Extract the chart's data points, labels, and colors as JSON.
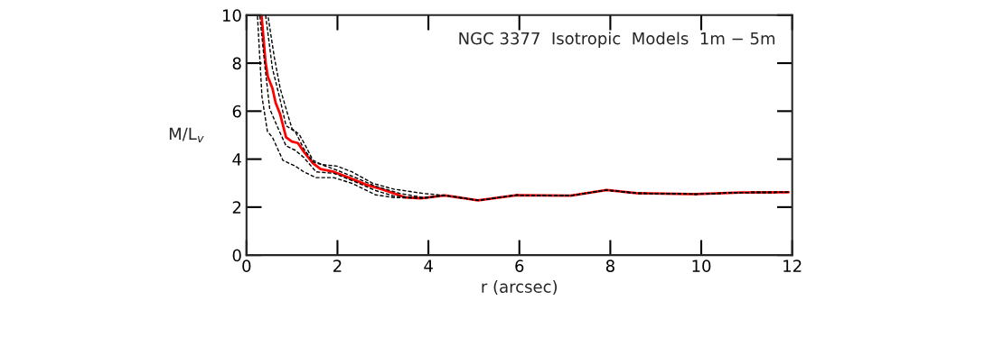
{
  "chart_data": {
    "type": "line",
    "xlabel": "r (arcsec)",
    "ylabel": "M/L$_{v}$",
    "annotations": [
      "NGC 3377  Isotropic  Models  1m − 5m"
    ],
    "xlim": [
      0,
      12
    ],
    "ylim": [
      0,
      10
    ],
    "xticks": [
      0,
      2,
      4,
      6,
      8,
      10,
      12
    ],
    "yticks": [
      0,
      2,
      4,
      6,
      8,
      10
    ],
    "grid": false,
    "legend": false,
    "series": [
      {
        "color": "#000000",
        "line_style": "dashed",
        "x": [
          0.47,
          0.61,
          0.74,
          0.87,
          1.0,
          1.16,
          1.3,
          1.46,
          1.66,
          1.99,
          2.32,
          2.78,
          3.24,
          3.89,
          4.36,
          5.09,
          5.94,
          7.13,
          7.92,
          8.58,
          9.89,
          10.88,
          11.92
        ],
        "values": [
          10,
          8.26,
          6.95,
          6.1,
          5.27,
          5.03,
          4.55,
          3.95,
          3.77,
          3.71,
          3.47,
          2.99,
          2.75,
          2.57,
          2.49,
          2.28,
          2.5,
          2.48,
          2.71,
          2.58,
          2.54,
          2.61,
          2.62
        ]
      },
      {
        "color": "#000000",
        "line_style": "dashed",
        "x": [
          0.42,
          0.57,
          0.74,
          0.87,
          1.07,
          1.26,
          1.46,
          1.92,
          2.32,
          2.84,
          3.37,
          3.89,
          4.36,
          5.09,
          5.94,
          7.13,
          7.92,
          8.58,
          9.89,
          10.88,
          11.92
        ],
        "values": [
          10,
          7.78,
          6.47,
          5.39,
          5.15,
          4.43,
          3.89,
          3.59,
          3.29,
          2.87,
          2.57,
          2.4,
          2.49,
          2.28,
          2.5,
          2.48,
          2.71,
          2.58,
          2.54,
          2.61,
          2.62
        ]
      },
      {
        "color": "#000000",
        "line_style": "dashed",
        "x": [
          0.29,
          0.41,
          0.51,
          0.67,
          0.87,
          1.07,
          1.26,
          1.53,
          1.92,
          2.32,
          2.84,
          3.24,
          3.89,
          4.36,
          5.09,
          5.94,
          7.13,
          7.92,
          8.58,
          9.89,
          10.88,
          11.92
        ],
        "values": [
          10,
          7.78,
          6.1,
          5.39,
          4.55,
          4.37,
          4.07,
          3.47,
          3.41,
          3.11,
          2.69,
          2.46,
          2.37,
          2.49,
          2.28,
          2.5,
          2.48,
          2.71,
          2.58,
          2.54,
          2.61,
          2.62
        ]
      },
      {
        "color": "#000000",
        "line_style": "dashed",
        "x": [
          0.24,
          0.34,
          0.46,
          0.57,
          0.8,
          1.07,
          1.26,
          1.53,
          1.92,
          2.32,
          2.84,
          3.24,
          3.89,
          4.36,
          5.09,
          5.94,
          7.13,
          7.92,
          8.58,
          9.89,
          10.88,
          11.92
        ],
        "values": [
          10,
          6.6,
          5.15,
          4.91,
          3.95,
          3.71,
          3.47,
          3.23,
          3.23,
          2.99,
          2.51,
          2.4,
          2.37,
          2.49,
          2.28,
          2.5,
          2.48,
          2.71,
          2.58,
          2.54,
          2.61,
          2.62
        ]
      },
      {
        "color": "#ff0000",
        "line_style": "solid",
        "x": [
          0.33,
          0.42,
          0.47,
          0.57,
          0.64,
          0.74,
          0.87,
          1.0,
          1.13,
          1.26,
          1.46,
          1.63,
          1.92,
          2.25,
          2.64,
          2.97,
          3.5,
          3.83,
          4.36,
          5.09,
          5.94,
          7.13,
          7.92,
          8.58,
          9.89,
          10.88,
          11.92
        ],
        "values": [
          10,
          8.02,
          7.43,
          6.95,
          6.35,
          5.87,
          4.91,
          4.73,
          4.67,
          4.31,
          3.83,
          3.59,
          3.47,
          3.23,
          2.93,
          2.75,
          2.4,
          2.37,
          2.49,
          2.28,
          2.5,
          2.48,
          2.71,
          2.58,
          2.54,
          2.61,
          2.62
        ]
      }
    ]
  }
}
